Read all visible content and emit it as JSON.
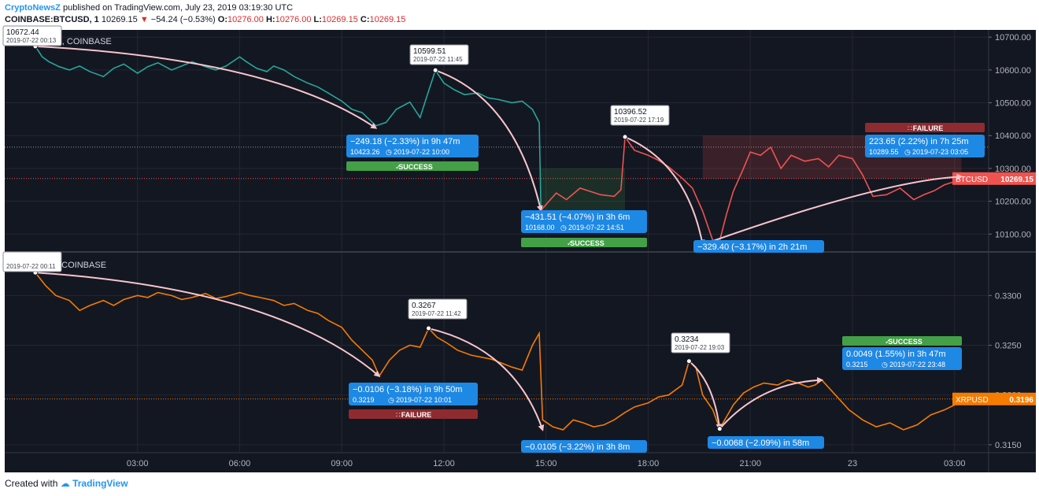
{
  "header": {
    "author": "CryptoNewsZ",
    "published_text": "published on TradingView.com, July 23, 2019 03:19:30 UTC",
    "symbol": "COINBASE:BTCUSD, 1",
    "last": "10269.15",
    "change": "−54.24 (−0.53%)",
    "o_label": "O:",
    "o": "10276.00",
    "h_label": "H:",
    "h": "10276.00",
    "l_label": "L:",
    "l": "10269.15",
    "c_label": "C:",
    "c": "10269.15"
  },
  "footer": {
    "created_with": "Created with",
    "brand": "TradingView"
  },
  "colors": {
    "background": "#131722",
    "btc_up": "#26a69a",
    "btc_down": "#ef5350",
    "xrp": "#f57c00",
    "annotation": "#1e88e5",
    "success": "#43a047",
    "failure": "#8e2b30",
    "arrow": "#f8c5cc"
  },
  "chart_data": [
    {
      "type": "line",
      "panel": "top",
      "series_label": "…S. Dollar, 1, COINBASE",
      "corner_label": "10672.44",
      "corner_date": "2019-07-22 00:13",
      "price_axis": [
        "10700.00",
        "10600.00",
        "10500.00",
        "10400.00",
        "10300.00",
        "10200.00",
        "10100.00"
      ],
      "ylim": [
        10048,
        10722
      ],
      "current_price": 10269.15,
      "current_label": "BTCUSD",
      "current_value": "10269.15",
      "ref_price": 10365,
      "x_range_hours": [
        -0.9,
        28.0
      ],
      "series": [
        {
          "name": "BTCUSD",
          "x": [
            0.0,
            0.2,
            0.4,
            0.7,
            1.0,
            1.3,
            1.6,
            2.0,
            2.3,
            2.6,
            3.0,
            3.3,
            3.6,
            4.0,
            4.3,
            4.6,
            5.0,
            5.3,
            5.6,
            6.0,
            6.2,
            6.5,
            6.8,
            7.0,
            7.3,
            7.6,
            8.0,
            8.3,
            8.6,
            9.0,
            9.3,
            9.6,
            9.8,
            10.0,
            10.3,
            10.6,
            11.0,
            11.3,
            11.5,
            11.75,
            12.0,
            12.3,
            12.6,
            13.0,
            13.3,
            13.6,
            14.0,
            14.3,
            14.6,
            14.8,
            14.85,
            15.0,
            15.3,
            15.6,
            16.0,
            16.3,
            16.6,
            17.0,
            17.2,
            17.32,
            17.6,
            18.0,
            18.3,
            18.6,
            19.0,
            19.3,
            19.6,
            19.9,
            20.1,
            20.3,
            20.5,
            20.8,
            21.0,
            21.3,
            21.6,
            21.9,
            22.2,
            22.6,
            23.0,
            23.3,
            23.6,
            24.0,
            24.3,
            24.6,
            25.0,
            25.4,
            25.8,
            26.1,
            26.4,
            26.7,
            27.0,
            27.2
          ],
          "y": [
            10672,
            10640,
            10625,
            10610,
            10600,
            10612,
            10595,
            10580,
            10605,
            10618,
            10590,
            10610,
            10622,
            10600,
            10612,
            10625,
            10610,
            10600,
            10612,
            10640,
            10625,
            10605,
            10595,
            10612,
            10600,
            10580,
            10560,
            10548,
            10530,
            10505,
            10480,
            10470,
            10450,
            10430,
            10440,
            10480,
            10502,
            10455,
            10520,
            10599,
            10560,
            10540,
            10525,
            10530,
            10515,
            10510,
            10500,
            10505,
            10480,
            10440,
            10172,
            10190,
            10225,
            10205,
            10240,
            10230,
            10220,
            10215,
            10235,
            10396,
            10355,
            10340,
            10325,
            10305,
            10270,
            10240,
            10170,
            10080,
            10080,
            10160,
            10230,
            10300,
            10350,
            10340,
            10365,
            10300,
            10340,
            10322,
            10330,
            10305,
            10340,
            10330,
            10280,
            10215,
            10220,
            10240,
            10205,
            10220,
            10232,
            10250,
            10260,
            10269
          ]
        }
      ],
      "annotations": [
        {
          "peak_price": "10672.44",
          "peak_date": "2019-07-22 00:13",
          "change": "−249.18 (−2.33%) in 9h 47m",
          "price": "10423.26",
          "date": "2019-07-22 10:00",
          "result": "SUCCESS"
        },
        {
          "peak_price": "10599.51",
          "peak_date": "2019-07-22 11:45",
          "change": "−431.51 (−4.07%) in 3h 6m",
          "price": "10168.00",
          "date": "2019-07-22 14:51",
          "result": "SUCCESS"
        },
        {
          "peak_price": "10396.52",
          "peak_date": "2019-07-22 17:19",
          "change": "−329.40 (−3.17%) in 2h 21m"
        },
        {
          "change": "223.65 (2.22%) in 7h 25m",
          "price": "10289.55",
          "date": "2019-07-23 03:05",
          "result": "FAILURE"
        }
      ]
    },
    {
      "type": "line",
      "panel": "bottom",
      "series_label": "XRPUSD, 1, COINBASE",
      "corner_date": "2019-07-22 00:11",
      "price_axis": [
        "0.3300",
        "0.3250",
        "0.3200",
        "0.3150"
      ],
      "ylim": [
        0.3142,
        0.3343
      ],
      "current_price": 0.3196,
      "current_label": "XRPUSD",
      "current_value": "0.3196",
      "x_range_hours": [
        -0.9,
        28.0
      ],
      "series": [
        {
          "name": "XRPUSD",
          "x": [
            0.0,
            0.3,
            0.6,
            1.0,
            1.3,
            1.6,
            2.0,
            2.3,
            2.6,
            3.0,
            3.3,
            3.6,
            4.0,
            4.3,
            4.6,
            5.0,
            5.3,
            5.6,
            6.0,
            6.3,
            6.6,
            7.0,
            7.3,
            7.6,
            8.0,
            8.3,
            8.6,
            9.0,
            9.3,
            9.6,
            9.9,
            10.1,
            10.4,
            10.7,
            11.0,
            11.3,
            11.55,
            11.8,
            12.1,
            12.4,
            12.8,
            13.1,
            13.4,
            13.7,
            14.0,
            14.3,
            14.6,
            14.8,
            14.9,
            15.2,
            15.5,
            15.8,
            16.1,
            16.4,
            16.7,
            17.0,
            17.3,
            17.6,
            18.0,
            18.3,
            18.6,
            19.0,
            19.2,
            19.4,
            19.6,
            19.9,
            20.1,
            20.3,
            20.5,
            20.8,
            21.1,
            21.4,
            21.8,
            22.1,
            22.4,
            22.7,
            22.9,
            23.1,
            23.5,
            23.9,
            24.3,
            24.7,
            25.1,
            25.5,
            25.9,
            26.3,
            26.7,
            27.0,
            27.2
          ],
          "y": [
            0.3323,
            0.331,
            0.33,
            0.3295,
            0.3285,
            0.329,
            0.3295,
            0.329,
            0.3296,
            0.33,
            0.3298,
            0.3303,
            0.33,
            0.3296,
            0.3298,
            0.3302,
            0.3297,
            0.3299,
            0.3303,
            0.33,
            0.3298,
            0.3295,
            0.329,
            0.3292,
            0.3285,
            0.3282,
            0.3275,
            0.3268,
            0.3255,
            0.3245,
            0.3235,
            0.3219,
            0.3235,
            0.3245,
            0.325,
            0.3248,
            0.3267,
            0.3258,
            0.3252,
            0.3245,
            0.324,
            0.3238,
            0.3236,
            0.3232,
            0.3228,
            0.3225,
            0.325,
            0.3262,
            0.3175,
            0.3168,
            0.3165,
            0.3175,
            0.3172,
            0.3168,
            0.317,
            0.3175,
            0.3182,
            0.3188,
            0.3192,
            0.3198,
            0.32,
            0.321,
            0.3234,
            0.3228,
            0.32,
            0.3185,
            0.3166,
            0.3178,
            0.319,
            0.3202,
            0.3208,
            0.3212,
            0.321,
            0.3215,
            0.3212,
            0.3208,
            0.321,
            0.3215,
            0.32,
            0.3185,
            0.3175,
            0.3168,
            0.3172,
            0.3165,
            0.317,
            0.318,
            0.3185,
            0.319,
            0.3196
          ]
        }
      ],
      "annotations": [
        {
          "peak_date": "2019-07-22 00:11",
          "change": "−0.0106 (−3.18%) in 9h 50m",
          "price": "0.3219",
          "date": "2019-07-22 10:01",
          "result": "FAILURE"
        },
        {
          "peak_price": "0.3267",
          "peak_date": "2019-07-22 11:42",
          "change": "−0.0105 (−3.22%) in 3h 8m"
        },
        {
          "peak_price": "0.3234",
          "peak_date": "2019-07-22 19:03",
          "change": "−0.0068 (−2.09%) in 58m"
        },
        {
          "change": "0.0049 (1.55%) in 3h 47m",
          "price": "0.3215",
          "date": "2019-07-22 23:48",
          "result": "SUCCESS"
        }
      ]
    }
  ],
  "time_axis": {
    "ticks": [
      3,
      6,
      9,
      12,
      15,
      18,
      21,
      24,
      27
    ],
    "labels": [
      "03:00",
      "06:00",
      "09:00",
      "12:00",
      "15:00",
      "18:00",
      "21:00",
      "23",
      "03:00"
    ]
  }
}
